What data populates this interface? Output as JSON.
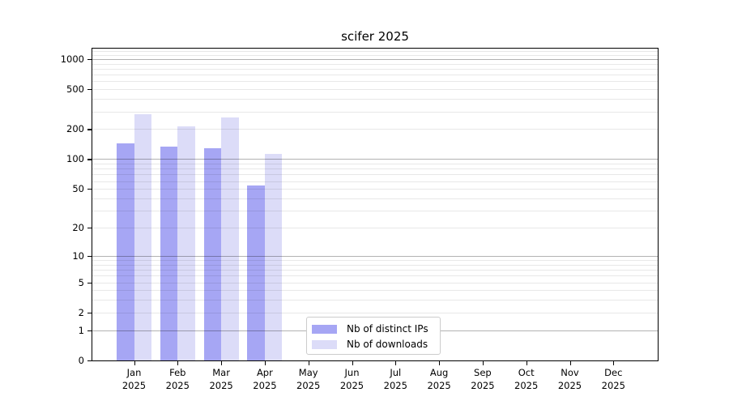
{
  "chart_data": {
    "type": "bar",
    "title": "scifer 2025",
    "categories": [
      "Jan 2025",
      "Feb 2025",
      "Mar 2025",
      "Apr 2025",
      "May 2025",
      "Jun 2025",
      "Jul 2025",
      "Aug 2025",
      "Sep 2025",
      "Oct 2025",
      "Nov 2025",
      "Dec 2025"
    ],
    "series": [
      {
        "name": "Nb of distinct IPs",
        "color": "#a6a6f4",
        "values": [
          145,
          134,
          130,
          54,
          0,
          0,
          0,
          0,
          0,
          0,
          0,
          0
        ]
      },
      {
        "name": "Nb of downloads",
        "color": "#dcdcf8",
        "values": [
          284,
          214,
          263,
          114,
          0,
          0,
          0,
          0,
          0,
          0,
          0,
          0
        ]
      }
    ],
    "yscale": "log1p",
    "ylim": [
      0,
      1273
    ],
    "y_ticks": [
      1000,
      500,
      200,
      100,
      50,
      20,
      10,
      5,
      2,
      1,
      0
    ],
    "y_major_gridlines": [
      1,
      10,
      100,
      1000
    ],
    "y_minor_gridlines": [
      2,
      3,
      4,
      5,
      6,
      7,
      8,
      9,
      20,
      30,
      40,
      50,
      60,
      70,
      80,
      90,
      200,
      300,
      400,
      500,
      600,
      700,
      800,
      900,
      1100,
      1200
    ],
    "grid": "horizontal",
    "legend_position": "bottom-center-inside"
  }
}
